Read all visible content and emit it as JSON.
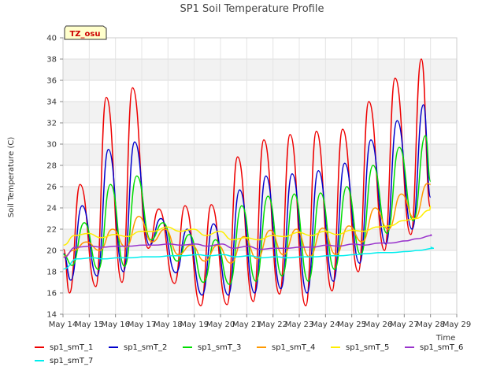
{
  "chart_data": {
    "type": "line",
    "title": "SP1 Soil Temperature Profile",
    "xlabel": "Time",
    "ylabel": "Soil Temperature (C)",
    "ylim": [
      14,
      40
    ],
    "yticks": [
      14,
      16,
      18,
      20,
      22,
      24,
      26,
      28,
      30,
      32,
      34,
      36,
      38,
      40
    ],
    "xlim": [
      "May 14",
      "May 29"
    ],
    "xticks": [
      "May 14",
      "May 15",
      "May 16",
      "May 17",
      "May 18",
      "May 19",
      "May 20",
      "May 21",
      "May 22",
      "May 23",
      "May 24",
      "May 25",
      "May 26",
      "May 27",
      "May 28",
      "May 29"
    ],
    "x": [
      "May 14",
      "May 15",
      "May 16",
      "May 17",
      "May 18",
      "May 19",
      "May 20",
      "May 21",
      "May 22",
      "May 23",
      "May 24",
      "May 25",
      "May 26",
      "May 27",
      "May 28"
    ],
    "grid": true,
    "banded_background": true,
    "legend_placement": "bottom",
    "badge": "TZ_osu",
    "series": [
      {
        "name": "sp1_smT_1",
        "color": "#ee0000",
        "max": [
          26.2,
          34.4,
          35.3,
          23.9,
          24.2,
          24.3,
          28.8,
          30.4,
          30.9,
          31.2,
          31.4,
          34.0,
          36.2,
          38.0
        ],
        "min": [
          16.0,
          16.6,
          17.0,
          20.2,
          16.9,
          14.8,
          14.9,
          15.2,
          15.9,
          14.8,
          16.2,
          18.0,
          20.0,
          21.5
        ],
        "end": 24.0
      },
      {
        "name": "sp1_smT_2",
        "color": "#0000cc",
        "max": [
          24.2,
          29.5,
          30.2,
          23.0,
          22.0,
          22.5,
          25.7,
          27.0,
          27.2,
          27.5,
          28.2,
          30.4,
          32.2,
          33.7
        ],
        "min": [
          17.2,
          17.6,
          18.0,
          20.5,
          17.9,
          15.8,
          15.8,
          16.0,
          16.4,
          16.0,
          17.1,
          18.8,
          20.6,
          22.0
        ],
        "end": 25.0
      },
      {
        "name": "sp1_smT_3",
        "color": "#00dd00",
        "max": [
          22.6,
          26.2,
          27.0,
          22.6,
          21.5,
          21.0,
          24.2,
          25.1,
          25.3,
          25.4,
          26.0,
          28.0,
          29.7,
          30.8
        ],
        "min": [
          18.6,
          18.2,
          18.5,
          21.0,
          19.0,
          17.0,
          16.8,
          17.1,
          17.6,
          17.1,
          18.2,
          19.6,
          21.6,
          22.8
        ],
        "end": 26.5
      },
      {
        "name": "sp1_smT_4",
        "color": "#ff9900",
        "max": [
          20.8,
          22.0,
          23.2,
          22.0,
          20.5,
          20.5,
          21.3,
          21.9,
          22.0,
          22.1,
          22.3,
          24.0,
          25.3,
          26.3
        ],
        "min": [
          20.0,
          20.0,
          20.3,
          20.8,
          19.6,
          19.0,
          18.8,
          19.2,
          19.6,
          19.4,
          19.6,
          20.8,
          22.0,
          23.0
        ],
        "end": 26.2
      },
      {
        "name": "sp1_smT_5",
        "color": "#ffee00",
        "max": [
          21.6,
          21.5,
          21.8,
          22.2,
          22.0,
          21.8,
          21.2,
          21.4,
          21.7,
          21.8,
          21.9,
          22.2,
          22.8,
          23.8
        ],
        "min": [
          21.4,
          21.2,
          21.3,
          21.8,
          21.8,
          21.4,
          21.0,
          21.0,
          21.3,
          21.4,
          21.5,
          21.8,
          22.3,
          23.0
        ],
        "end": 24.2
      },
      {
        "name": "sp1_smT_6",
        "color": "#9933cc",
        "max": [
          20.4,
          20.4,
          20.5,
          20.6,
          20.6,
          20.6,
          20.4,
          20.2,
          20.3,
          20.5,
          20.6,
          20.7,
          20.9,
          21.4
        ],
        "min": [
          20.3,
          20.3,
          20.4,
          20.5,
          20.5,
          20.4,
          20.2,
          20.1,
          20.2,
          20.3,
          20.4,
          20.5,
          20.7,
          21.1
        ],
        "end": 21.5
      },
      {
        "name": "sp1_smT_7",
        "color": "#00eeee",
        "max": [
          19.3,
          19.3,
          19.4,
          19.5,
          19.6,
          19.6,
          19.5,
          19.4,
          19.4,
          19.5,
          19.6,
          19.8,
          19.9,
          20.2
        ],
        "min": [
          19.2,
          19.2,
          19.3,
          19.4,
          19.5,
          19.5,
          19.4,
          19.3,
          19.3,
          19.4,
          19.5,
          19.7,
          19.8,
          20.0
        ],
        "end": 20.3
      }
    ]
  }
}
